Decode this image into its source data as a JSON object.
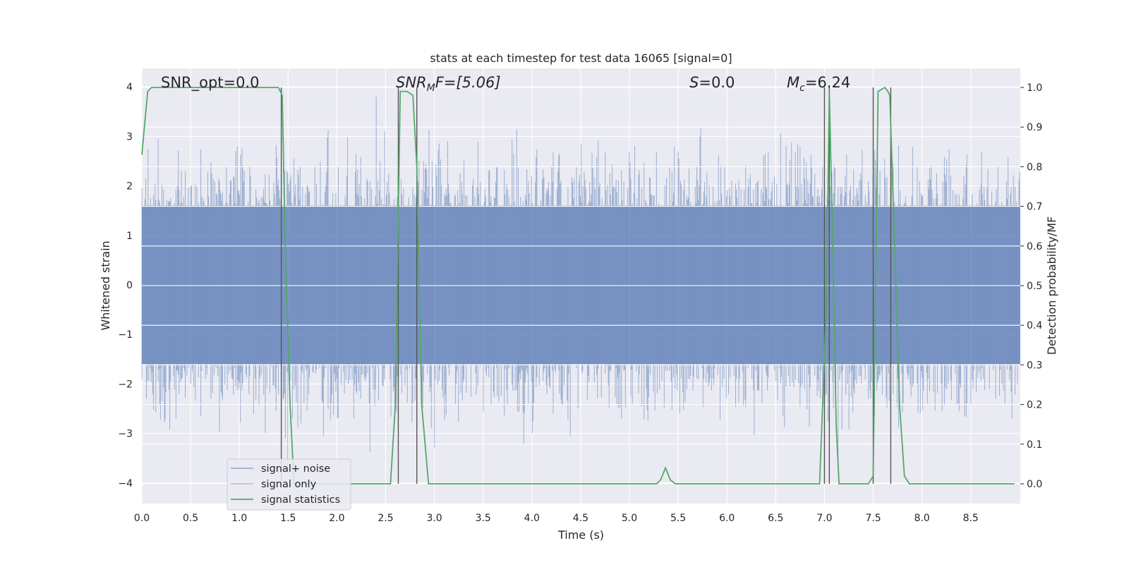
{
  "chart_data": {
    "type": "line",
    "title": "stats at each timestep for test data 16065 [signal=0]",
    "xlabel": "Time (s)",
    "ylabel_left": "Whitened strain",
    "ylabel_right": "Detection probability/MF",
    "xlim": [
      0.0,
      9.0
    ],
    "ylim_left": [
      -4.4,
      4.4
    ],
    "ylim_right": [
      -0.05,
      1.05
    ],
    "x_ticks": [
      "0.0",
      "0.5",
      "1.0",
      "1.5",
      "2.0",
      "2.5",
      "3.0",
      "3.5",
      "4.0",
      "4.5",
      "5.0",
      "5.5",
      "6.0",
      "6.5",
      "7.0",
      "7.5",
      "8.0",
      "8.5"
    ],
    "y_ticks_left": [
      "−4",
      "−3",
      "−2",
      "−1",
      "0",
      "1",
      "2",
      "3",
      "4"
    ],
    "y_ticks_right": [
      "0.0",
      "0.1",
      "0.2",
      "0.3",
      "0.4",
      "0.5",
      "0.6",
      "0.7",
      "0.8",
      "0.9",
      "1.0"
    ],
    "grid": true,
    "legend_position": "lower-left",
    "colors": {
      "background": "#eaeaf2",
      "grid": "#ffffff",
      "signal_noise": "#4c72b0",
      "signal_only": "#dd8452",
      "statistics": "#55a868",
      "markers": "#555555"
    },
    "annotations": {
      "snr_opt": "SNR_opt=0.0",
      "snr_mf_main": "SNR",
      "snr_mf_sub": "M",
      "snr_mf_tail": "F=[5.06]",
      "s_main": "S",
      "s_tail": "=0.0",
      "mc_main": "M",
      "mc_sub": "c",
      "mc_tail": "=6.24"
    },
    "series": [
      {
        "name": "signal+ noise",
        "axis": "left",
        "description_type": "whitened strain noise band",
        "envelope_abs": 1.6,
        "peak_abs": 3.8
      },
      {
        "name": "signal only",
        "axis": "left",
        "values": []
      },
      {
        "name": "signal statistics",
        "axis": "right",
        "x": [
          0.0,
          0.06,
          0.1,
          0.15,
          0.2,
          1.4,
          1.44,
          1.47,
          1.52,
          1.56,
          1.6,
          2.55,
          2.6,
          2.65,
          2.72,
          2.78,
          2.82,
          2.87,
          2.94,
          3.0,
          5.28,
          5.32,
          5.37,
          5.42,
          5.47,
          6.95,
          7.02,
          7.05,
          7.09,
          7.12,
          7.15,
          7.2,
          7.45,
          7.5,
          7.55,
          7.62,
          7.65,
          7.67,
          7.72,
          7.77,
          7.82,
          7.87,
          8.95
        ],
        "y": [
          0.83,
          0.99,
          1.0,
          1.0,
          1.0,
          1.0,
          0.98,
          0.6,
          0.2,
          0.0,
          0.0,
          0.0,
          0.2,
          0.99,
          0.99,
          0.98,
          0.8,
          0.2,
          0.0,
          0.0,
          0.0,
          0.01,
          0.04,
          0.01,
          0.0,
          0.0,
          0.45,
          0.99,
          0.55,
          0.15,
          0.0,
          0.0,
          0.0,
          0.02,
          0.99,
          1.0,
          0.99,
          0.98,
          0.6,
          0.2,
          0.02,
          0.0,
          0.0
        ]
      }
    ],
    "vertical_markers": [
      1.43,
      2.63,
      2.82,
      7.0,
      7.05,
      7.5,
      7.68
    ],
    "legend": [
      "signal+ noise",
      "signal only",
      "signal statistics"
    ]
  }
}
